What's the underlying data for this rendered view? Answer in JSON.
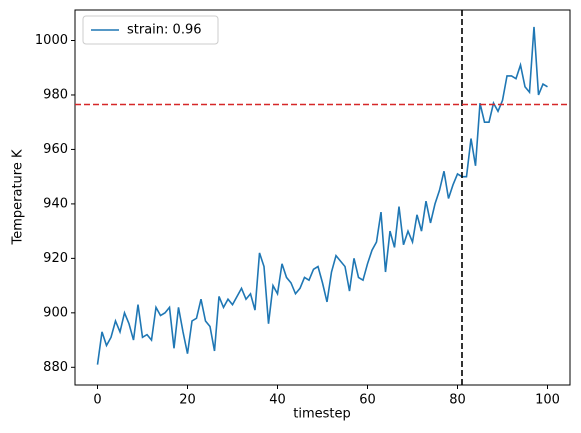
{
  "chart_data": {
    "type": "line",
    "xlabel": "timestep",
    "ylabel": "Temperature K",
    "x": [
      0,
      1,
      2,
      3,
      4,
      5,
      6,
      7,
      8,
      9,
      10,
      11,
      12,
      13,
      14,
      15,
      16,
      17,
      18,
      19,
      20,
      21,
      22,
      23,
      24,
      25,
      26,
      27,
      28,
      29,
      30,
      31,
      32,
      33,
      34,
      35,
      36,
      37,
      38,
      39,
      40,
      41,
      42,
      43,
      44,
      45,
      46,
      47,
      48,
      49,
      50,
      51,
      52,
      53,
      54,
      55,
      56,
      57,
      58,
      59,
      60,
      61,
      62,
      63,
      64,
      65,
      66,
      67,
      68,
      69,
      70,
      71,
      72,
      73,
      74,
      75,
      76,
      77,
      78,
      79,
      80,
      81,
      82,
      83,
      84,
      85,
      86,
      87,
      88,
      89,
      90,
      91,
      92,
      93,
      94,
      95,
      96,
      97,
      98,
      99,
      100
    ],
    "series": [
      {
        "name": "strain: 0.96",
        "color": "#1f77b4",
        "values": [
          881,
          893,
          888,
          891,
          897,
          893,
          900,
          896,
          890,
          903,
          891,
          892,
          890,
          902,
          899,
          900,
          902,
          887,
          902,
          893,
          885,
          897,
          898,
          905,
          897,
          895,
          886,
          906,
          902,
          905,
          903,
          906,
          909,
          905,
          907,
          901,
          922,
          917,
          896,
          910,
          907,
          918,
          913,
          911,
          907,
          909,
          913,
          912,
          916,
          917,
          911,
          904,
          915,
          921,
          919,
          917,
          908,
          920,
          913,
          912,
          918,
          923,
          926,
          937,
          915,
          930,
          924,
          939,
          925,
          930,
          926,
          936,
          930,
          941,
          933,
          940,
          945,
          952,
          942,
          947,
          951,
          950,
          950,
          964,
          954,
          977,
          970,
          970,
          977,
          974,
          978,
          987,
          987,
          986,
          991,
          983,
          981,
          1005,
          980,
          984,
          983
        ]
      }
    ],
    "vline": {
      "x": 81,
      "color": "#000000"
    },
    "hline": {
      "y": 976.5,
      "color": "#d62728"
    },
    "xlim": [
      -5,
      105
    ],
    "ylim": [
      873.5,
      1011.2
    ],
    "xticks": [
      0,
      20,
      40,
      60,
      80,
      100
    ],
    "yticks": [
      880,
      900,
      920,
      940,
      960,
      980,
      1000
    ],
    "legend": "upper left"
  }
}
